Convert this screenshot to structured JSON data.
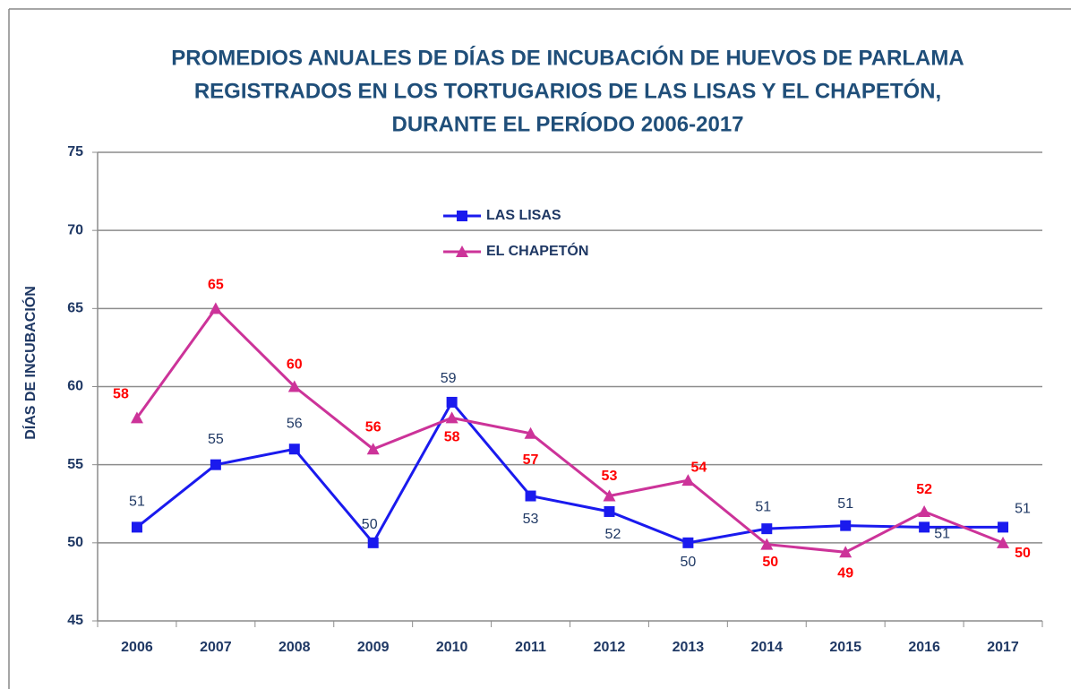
{
  "chart_data": {
    "type": "line",
    "title": [
      "PROMEDIOS ANUALES DE DÍAS DE INCUBACIÓN DE HUEVOS DE PARLAMA",
      "REGISTRADOS EN LOS TORTUGARIOS DE LAS LISAS Y EL CHAPETÓN,",
      "DURANTE EL PERÍODO 2006-2017"
    ],
    "y_label": "DÍAS DE INCUBACIÓN",
    "categories": [
      "2006",
      "2007",
      "2008",
      "2009",
      "2010",
      "2011",
      "2012",
      "2013",
      "2014",
      "2015",
      "2016",
      "2017"
    ],
    "series": [
      {
        "name": "LAS LISAS",
        "color": "#1a1aee",
        "label_color": "#1F3864",
        "marker": "square",
        "values": [
          51,
          55,
          56,
          50,
          59,
          53,
          52,
          50,
          50.9,
          51.1,
          51,
          51
        ],
        "value_labels": [
          "51",
          "55",
          "56",
          "50",
          "59",
          "53",
          "52",
          "50",
          "51",
          "51",
          "51",
          "51"
        ]
      },
      {
        "name": "EL CHAPETÓN",
        "color": "#cc3399",
        "label_color": "#ff0000",
        "marker": "triangle",
        "values": [
          58,
          65,
          60,
          56,
          58,
          57,
          53,
          54,
          49.9,
          49.4,
          52,
          50
        ],
        "value_labels": [
          "58",
          "65",
          "60",
          "56",
          "58",
          "57",
          "53",
          "54",
          "50",
          "49",
          "52",
          "50"
        ]
      }
    ],
    "ylim": [
      45,
      75
    ],
    "yticks": [
      45,
      50,
      55,
      60,
      65,
      70,
      75
    ],
    "grid": true,
    "legend": "upper center"
  }
}
